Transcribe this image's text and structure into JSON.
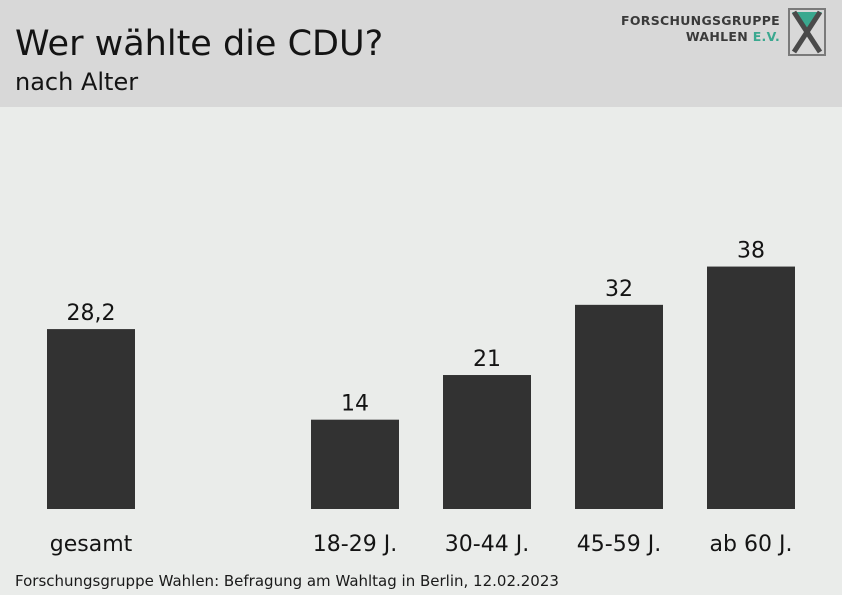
{
  "header": {
    "title": "Wer wählte die CDU?",
    "subtitle": "nach Alter"
  },
  "logo": {
    "line1": "FORSCHUNGSGRUPPE",
    "line2_main": "WAHLEN ",
    "line2_accent": "E.V.",
    "accent_color": "#3aa88f"
  },
  "chart_data": {
    "type": "bar",
    "title": "Wer wählte die CDU?",
    "subtitle": "nach Alter",
    "categories": [
      "gesamt",
      "18-29 J.",
      "30-44 J.",
      "45-59 J.",
      "ab 60 J."
    ],
    "values": [
      28.2,
      14,
      21,
      32,
      38
    ],
    "value_labels": [
      "28,2",
      "14",
      "21",
      "32",
      "38"
    ],
    "xlabel": "",
    "ylabel": "",
    "bar_color": "#323232",
    "grid": false,
    "legend": "none"
  },
  "footer": {
    "source": "Forschungsgruppe Wahlen: Befragung am Wahltag in Berlin, 12.02.2023"
  }
}
